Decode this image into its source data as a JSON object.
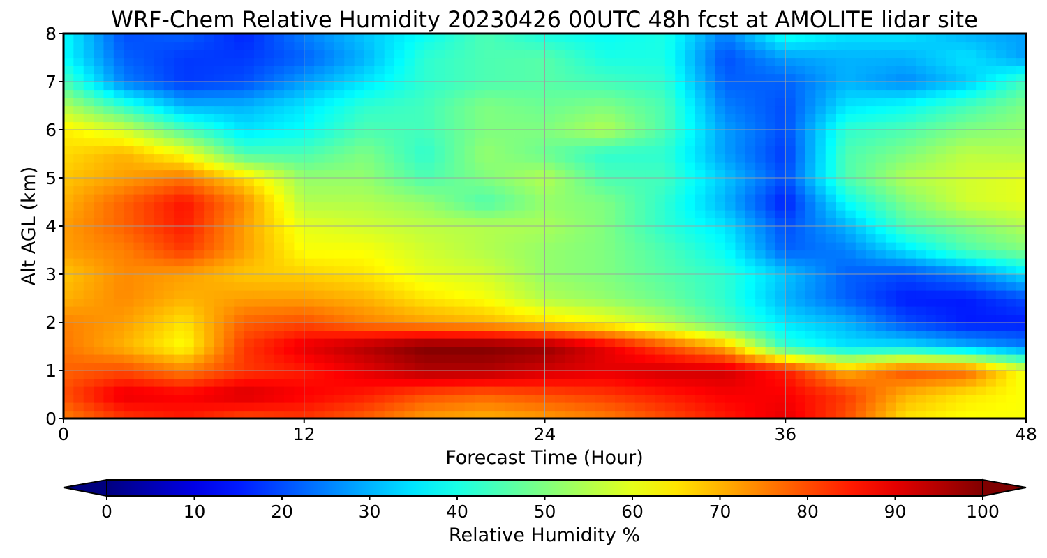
{
  "chart_data": {
    "type": "heatmap",
    "title": "WRF-Chem Relative Humidity 20230426 00UTC 48h fcst at AMOLITE lidar site",
    "xlabel": "Forecast Time (Hour)",
    "ylabel": "Alt AGL (km)",
    "xlim": [
      0,
      48
    ],
    "ylim": [
      0,
      8
    ],
    "x_ticks": [
      "0",
      "12",
      "24",
      "36",
      "48"
    ],
    "y_ticks": [
      "0",
      "1",
      "2",
      "3",
      "4",
      "5",
      "6",
      "7",
      "8"
    ],
    "grid": true,
    "colormap": "jet",
    "colorbar": {
      "label": "Relative Humidity %",
      "range": [
        0,
        100
      ],
      "ticks": [
        "0",
        "10",
        "20",
        "30",
        "40",
        "50",
        "60",
        "70",
        "80",
        "90",
        "100"
      ],
      "extend": "both"
    },
    "x": [
      0,
      3,
      6,
      9,
      12,
      15,
      18,
      21,
      24,
      27,
      30,
      33,
      36,
      39,
      42,
      45,
      48
    ],
    "y": [
      0,
      0.5,
      1,
      1.5,
      2,
      2.5,
      3,
      3.5,
      4,
      4.5,
      5,
      5.5,
      6,
      6.5,
      7,
      7.5,
      8
    ],
    "z": [
      [
        75,
        82,
        85,
        80,
        82,
        78,
        72,
        70,
        72,
        75,
        80,
        85,
        90,
        80,
        65,
        62,
        62
      ],
      [
        80,
        90,
        88,
        92,
        88,
        85,
        80,
        78,
        80,
        82,
        85,
        88,
        88,
        82,
        70,
        65,
        62
      ],
      [
        78,
        80,
        75,
        82,
        85,
        90,
        95,
        95,
        92,
        90,
        92,
        92,
        85,
        70,
        80,
        78,
        60
      ],
      [
        76,
        70,
        62,
        82,
        90,
        95,
        100,
        100,
        98,
        90,
        80,
        70,
        42,
        35,
        35,
        30,
        25
      ],
      [
        75,
        72,
        65,
        78,
        80,
        75,
        72,
        70,
        66,
        62,
        55,
        45,
        35,
        30,
        20,
        15,
        15
      ],
      [
        70,
        74,
        70,
        72,
        72,
        70,
        65,
        62,
        55,
        52,
        48,
        42,
        30,
        22,
        15,
        15,
        20
      ],
      [
        68,
        74,
        72,
        68,
        67,
        65,
        60,
        58,
        52,
        50,
        46,
        42,
        32,
        22,
        20,
        25,
        35
      ],
      [
        72,
        75,
        82,
        72,
        62,
        62,
        58,
        55,
        52,
        50,
        45,
        38,
        22,
        25,
        35,
        45,
        50
      ],
      [
        72,
        78,
        85,
        72,
        60,
        58,
        56,
        55,
        54,
        50,
        42,
        35,
        20,
        30,
        45,
        50,
        55
      ],
      [
        70,
        78,
        86,
        74,
        55,
        55,
        52,
        45,
        52,
        50,
        42,
        30,
        15,
        38,
        50,
        58,
        60
      ],
      [
        68,
        72,
        76,
        66,
        52,
        52,
        45,
        50,
        55,
        45,
        44,
        32,
        20,
        45,
        55,
        58,
        60
      ],
      [
        66,
        70,
        62,
        45,
        45,
        50,
        42,
        52,
        48,
        42,
        42,
        28,
        18,
        45,
        50,
        56,
        55
      ],
      [
        64,
        58,
        45,
        35,
        38,
        45,
        44,
        50,
        50,
        55,
        45,
        28,
        20,
        42,
        45,
        50,
        52
      ],
      [
        55,
        42,
        30,
        30,
        35,
        42,
        44,
        50,
        48,
        50,
        45,
        25,
        20,
        35,
        38,
        44,
        50
      ],
      [
        45,
        25,
        18,
        20,
        28,
        35,
        42,
        45,
        46,
        44,
        42,
        22,
        22,
        30,
        26,
        32,
        44
      ],
      [
        38,
        22,
        18,
        18,
        22,
        30,
        42,
        45,
        46,
        40,
        40,
        20,
        28,
        30,
        30,
        35,
        28
      ],
      [
        38,
        20,
        22,
        16,
        25,
        32,
        38,
        45,
        40,
        38,
        40,
        25,
        40,
        35,
        35,
        30,
        28
      ]
    ]
  }
}
